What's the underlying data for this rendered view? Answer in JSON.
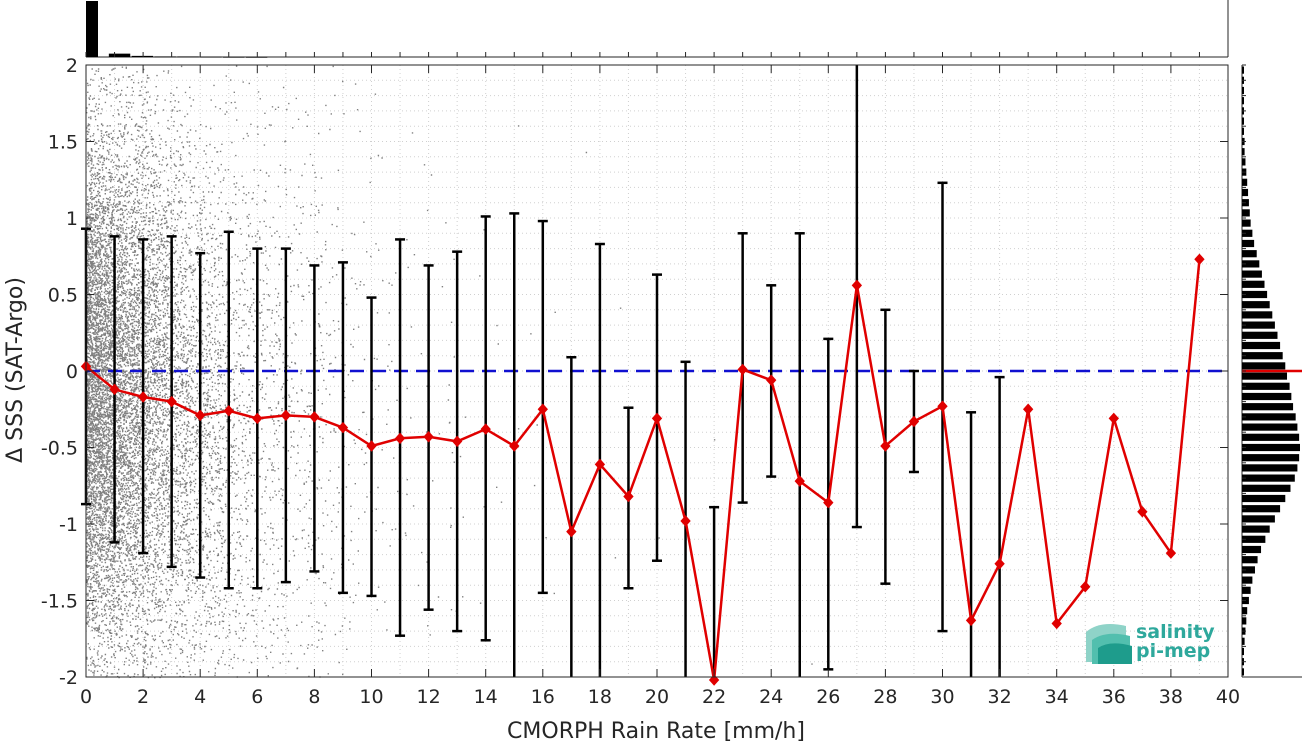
{
  "chart_data": {
    "type": "scatter",
    "xlabel": "CMORPH Rain Rate [mm/h]",
    "ylabel": "Δ SSS (SAT-Argo)",
    "xlim": [
      0,
      40
    ],
    "ylim": [
      -2,
      2
    ],
    "x_ticks": [
      "0",
      "2",
      "4",
      "6",
      "8",
      "10",
      "12",
      "14",
      "16",
      "18",
      "20",
      "22",
      "24",
      "26",
      "28",
      "30",
      "32",
      "34",
      "36",
      "38",
      "40"
    ],
    "y_ticks": [
      "-2",
      "-1.5",
      "-1",
      "-0.5",
      "0",
      "0.5",
      "1",
      "1.5",
      "2"
    ],
    "grid": true,
    "reference_line": {
      "y": 0,
      "style": "dashed",
      "color": "#1010d0"
    },
    "scatter_color": "#808080",
    "mean_color": "#e00000",
    "errorbar_color": "#000000",
    "mean_series": {
      "x": [
        0,
        1,
        2,
        3,
        4,
        5,
        6,
        7,
        8,
        9,
        10,
        11,
        12,
        13,
        14,
        15,
        16,
        17,
        18,
        19,
        20,
        21,
        22,
        23,
        24,
        25,
        26,
        27,
        28,
        29,
        30,
        31,
        32,
        33,
        34,
        35,
        36,
        37,
        38,
        39
      ],
      "y": [
        0.03,
        -0.12,
        -0.17,
        -0.2,
        -0.29,
        -0.26,
        -0.31,
        -0.29,
        -0.3,
        -0.37,
        -0.49,
        -0.44,
        -0.43,
        -0.46,
        -0.38,
        -0.49,
        -0.25,
        -1.05,
        -0.61,
        -0.82,
        -0.31,
        -0.98,
        -2.02,
        0.01,
        -0.06,
        -0.72,
        -0.86,
        0.56,
        -0.49,
        -0.33,
        -0.23,
        -1.63,
        -1.26,
        -0.25,
        -1.65,
        -1.41,
        -0.31,
        -0.92,
        -1.19,
        0.73
      ]
    },
    "error_bars": {
      "upper": [
        0.93,
        0.88,
        0.86,
        0.88,
        0.77,
        0.91,
        0.8,
        0.8,
        0.69,
        0.71,
        0.48,
        0.86,
        0.69,
        0.78,
        1.01,
        1.03,
        0.98,
        0.09,
        0.83,
        -0.24,
        0.63,
        0.06,
        -0.89,
        0.9,
        0.56,
        0.9,
        0.21,
        2.0,
        0.4,
        0.0,
        1.23,
        -0.27,
        -0.04,
        null,
        null,
        null,
        null,
        null,
        null,
        null
      ],
      "lower": [
        -0.87,
        -1.12,
        -1.19,
        -1.28,
        -1.35,
        -1.42,
        -1.42,
        -1.38,
        -1.31,
        -1.45,
        -1.47,
        -1.73,
        -1.56,
        -1.7,
        -1.76,
        -2.0,
        -1.45,
        -2.0,
        -2.0,
        -1.42,
        -1.24,
        -2.0,
        -2.0,
        -0.86,
        -0.69,
        -2.0,
        -1.95,
        -1.02,
        -1.39,
        -0.66,
        -1.7,
        -2.0,
        -2.0,
        null,
        null,
        null,
        null,
        null,
        null,
        null
      ]
    },
    "x_histogram_counts": [
      100,
      6,
      2,
      1,
      1,
      0.5,
      0.3,
      0.2
    ],
    "y_histogram_counts": [
      1,
      1,
      2,
      3,
      4,
      5,
      6,
      8,
      10,
      12,
      15,
      18,
      22,
      27,
      32,
      38,
      44,
      50,
      56,
      61,
      64,
      66,
      67,
      66,
      64,
      62,
      59,
      57,
      55,
      52,
      50,
      47,
      44,
      41,
      38,
      35,
      32,
      29,
      26,
      23,
      20,
      17,
      14,
      12,
      10,
      9,
      8,
      7,
      6,
      5,
      4,
      3,
      3,
      2,
      2,
      1,
      1,
      1,
      1,
      1
    ],
    "y_histogram_median": 0
  },
  "logo": {
    "line1": "salinity",
    "line2": "pi-mep"
  }
}
